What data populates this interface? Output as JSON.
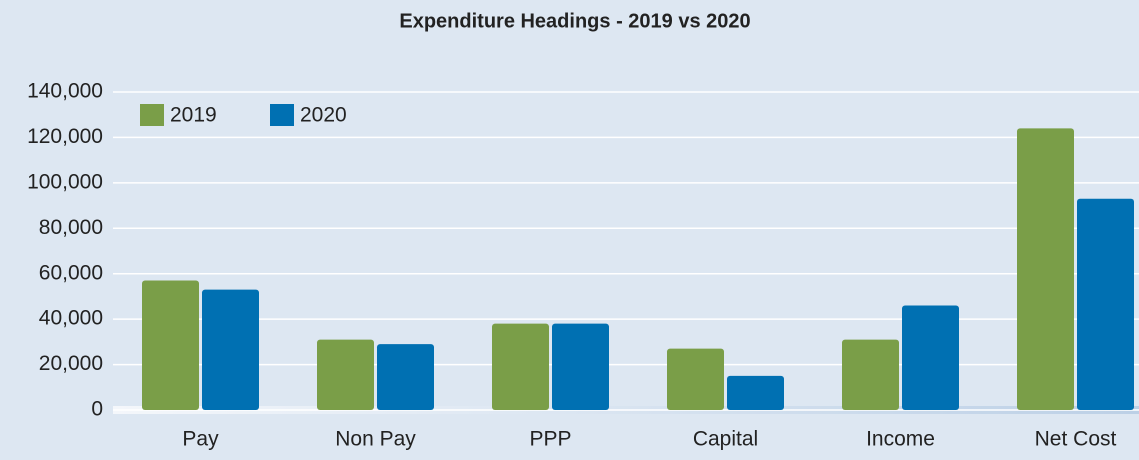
{
  "chart_data": {
    "type": "bar",
    "title": "Expenditure Headings - 2019 vs 2020",
    "categories": [
      "Pay",
      "Non Pay",
      "PPP",
      "Capital",
      "Income",
      "Net Cost"
    ],
    "series": [
      {
        "name": "2019",
        "color": "#7a9e48",
        "values": [
          57000,
          31000,
          38000,
          27000,
          31000,
          124000
        ]
      },
      {
        "name": "2020",
        "color": "#0070b2",
        "values": [
          53000,
          29000,
          38000,
          15000,
          46000,
          93000
        ]
      }
    ],
    "ylim": [
      0,
      140000
    ],
    "yticks": [
      0,
      {
        "value": 20000,
        "label": "20,000"
      },
      {
        "value": 40000,
        "label": "40,000"
      },
      {
        "value": 60000,
        "label": "60,000"
      },
      {
        "value": 80000,
        "label": "80,000"
      },
      {
        "value": 100000,
        "label": "100,000"
      },
      {
        "value": 120000,
        "label": "120,000"
      },
      {
        "value": 140000,
        "label": "140,000"
      }
    ],
    "grid": true,
    "legend": "top-left"
  }
}
